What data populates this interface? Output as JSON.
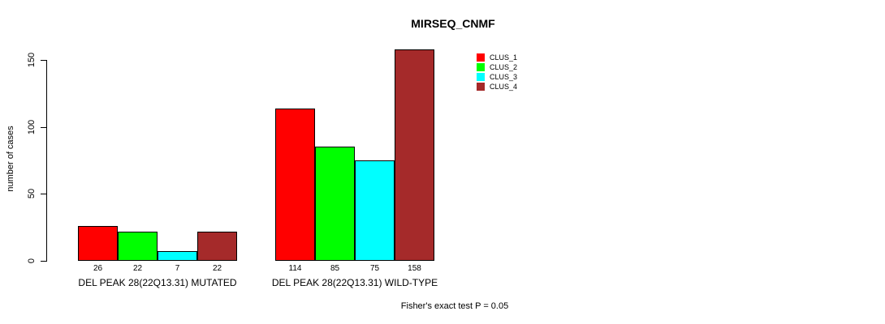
{
  "chart_data": {
    "type": "bar",
    "title": "MIRSEQ_CNMF",
    "ylabel": "number of cases",
    "xlabel": "",
    "ylim": [
      0,
      150
    ],
    "yticks": [
      0,
      50,
      100,
      150
    ],
    "grid": false,
    "categories": [
      "DEL PEAK 28(22Q13.31) MUTATED",
      "DEL PEAK 28(22Q13.31) WILD-TYPE"
    ],
    "series": [
      {
        "name": "CLUS_1",
        "color": "#FF0000",
        "values": [
          26,
          114
        ]
      },
      {
        "name": "CLUS_2",
        "color": "#00FF00",
        "values": [
          22,
          85
        ]
      },
      {
        "name": "CLUS_3",
        "color": "#00FFFF",
        "values": [
          7,
          75
        ]
      },
      {
        "name": "CLUS_4",
        "color": "#A52A2A",
        "values": [
          22,
          158
        ]
      }
    ],
    "bar_value_labels_shown": true,
    "legend_position": "top-right",
    "annotation": "Fisher's exact test P = 0.05"
  }
}
